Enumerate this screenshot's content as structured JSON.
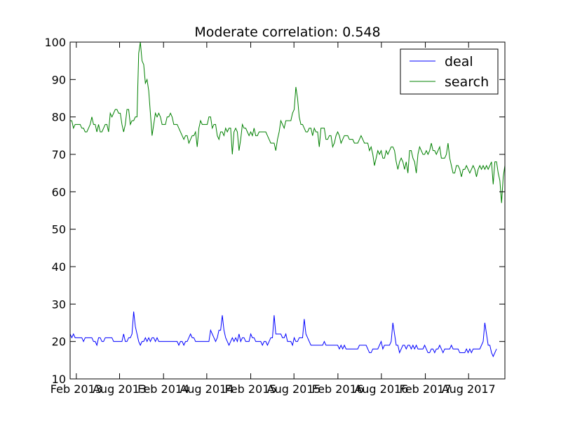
{
  "chart_data": {
    "type": "line",
    "title": "Moderate correlation: 0.548",
    "xlabel": "",
    "ylabel": "",
    "x_start": "2013-01-06",
    "x_end": "2017-12-31",
    "x_step": "week",
    "ylim": [
      10,
      100
    ],
    "yticks": [
      10,
      20,
      30,
      40,
      50,
      60,
      70,
      80,
      90,
      100
    ],
    "xticks": [
      {
        "date": "2013-02-01",
        "label": "Feb 2013"
      },
      {
        "date": "2013-08-01",
        "label": "Aug 2013"
      },
      {
        "date": "2014-02-01",
        "label": "Feb 2014"
      },
      {
        "date": "2014-08-01",
        "label": "Aug 2014"
      },
      {
        "date": "2015-02-01",
        "label": "Feb 2015"
      },
      {
        "date": "2015-08-01",
        "label": "Aug 2015"
      },
      {
        "date": "2016-02-01",
        "label": "Feb 2016"
      },
      {
        "date": "2016-08-01",
        "label": "Aug 2016"
      },
      {
        "date": "2017-02-01",
        "label": "Feb 2017"
      },
      {
        "date": "2017-08-01",
        "label": "Aug 2017"
      }
    ],
    "grid": false,
    "legend_position": "top-right",
    "series": [
      {
        "name": "deal",
        "color": "#0000ff",
        "values": [
          22,
          21,
          22,
          21,
          21,
          21,
          21,
          21,
          20,
          21,
          21,
          21,
          21,
          21,
          20,
          20,
          19,
          21,
          21,
          20,
          20,
          21,
          21,
          21,
          21,
          21,
          20,
          20,
          20,
          20,
          20,
          20,
          22,
          20,
          20,
          21,
          21,
          22,
          28,
          24,
          22,
          20,
          19,
          20,
          20,
          21,
          20,
          21,
          20,
          21,
          21,
          20,
          21,
          20,
          20,
          20,
          20,
          20,
          20,
          20,
          20,
          20,
          20,
          20,
          20,
          19,
          20,
          20,
          19,
          20,
          20,
          21,
          22,
          21,
          21,
          20,
          20,
          20,
          20,
          20,
          20,
          20,
          20,
          20,
          23,
          22,
          21,
          20,
          21,
          23,
          23,
          27,
          23,
          21,
          20,
          19,
          20,
          21,
          20,
          21,
          20,
          22,
          20,
          21,
          21,
          20,
          20,
          20,
          22,
          21,
          21,
          20,
          20,
          20,
          20,
          19,
          20,
          20,
          19,
          20,
          21,
          21,
          27,
          22,
          22,
          22,
          22,
          21,
          21,
          22,
          20,
          20,
          20,
          19,
          21,
          20,
          20,
          21,
          21,
          21,
          26,
          22,
          21,
          20,
          19,
          19,
          19,
          19,
          19,
          19,
          19,
          19,
          20,
          19,
          19,
          19,
          19,
          19,
          19,
          19,
          19,
          18,
          19,
          18,
          19,
          18,
          18,
          18,
          18,
          18,
          18,
          18,
          18,
          19,
          19,
          19,
          19,
          19,
          18,
          17,
          17,
          18,
          18,
          18,
          18,
          19,
          20,
          18,
          19,
          19,
          19,
          19,
          20,
          25,
          22,
          19,
          19,
          17,
          18,
          19,
          19,
          18,
          19,
          19,
          18,
          19,
          18,
          19,
          18,
          18,
          18,
          18,
          19,
          18,
          17,
          17,
          18,
          18,
          17,
          18,
          18,
          19,
          18,
          17,
          18,
          18,
          18,
          18,
          19,
          18,
          18,
          18,
          18,
          17,
          17,
          17,
          17,
          18,
          17,
          18,
          17,
          18,
          18,
          18,
          18,
          18,
          19,
          20,
          25,
          22,
          19,
          19,
          17,
          16,
          17,
          18
        ]
      },
      {
        "name": "search",
        "color": "#008000",
        "values": [
          79,
          79,
          77,
          78,
          78,
          78,
          78,
          77,
          77,
          76,
          76,
          77,
          78,
          80,
          78,
          78,
          76,
          78,
          76,
          76,
          77,
          78,
          78,
          76,
          81,
          80,
          81,
          82,
          82,
          81,
          81,
          78,
          76,
          78,
          82,
          82,
          78,
          79,
          79,
          80,
          80,
          97,
          100,
          95,
          94,
          89,
          90,
          87,
          81,
          75,
          78,
          81,
          80,
          81,
          80,
          78,
          78,
          78,
          80,
          80,
          81,
          80,
          78,
          78,
          78,
          77,
          76,
          75,
          74,
          75,
          75,
          73,
          74,
          75,
          75,
          76,
          72,
          77,
          79,
          78,
          78,
          78,
          78,
          80,
          80,
          77,
          78,
          78,
          75,
          74,
          76,
          76,
          75,
          77,
          76,
          77,
          77,
          70,
          76,
          77,
          76,
          71,
          74,
          78,
          77,
          77,
          76,
          75,
          76,
          75,
          77,
          75,
          75,
          76,
          76,
          76,
          76,
          76,
          75,
          74,
          73,
          73,
          73,
          71,
          74,
          76,
          79,
          78,
          77,
          79,
          79,
          79,
          79,
          81,
          82,
          88,
          85,
          80,
          78,
          78,
          77,
          76,
          76,
          77,
          77,
          75,
          77,
          76,
          76,
          72,
          77,
          77,
          77,
          74,
          74,
          75,
          75,
          72,
          73,
          75,
          76,
          75,
          73,
          74,
          75,
          75,
          75,
          74,
          74,
          74,
          73,
          73,
          73,
          74,
          75,
          74,
          73,
          73,
          73,
          71,
          72,
          70,
          67,
          69,
          71,
          70,
          71,
          69,
          69,
          71,
          70,
          71,
          72,
          72,
          71,
          68,
          66,
          68,
          69,
          68,
          66,
          68,
          65,
          71,
          71,
          69,
          68,
          65,
          70,
          72,
          71,
          70,
          70,
          71,
          70,
          71,
          73,
          71,
          71,
          70,
          71,
          72,
          69,
          69,
          69,
          70,
          73,
          69,
          67,
          65,
          65,
          67,
          67,
          66,
          64,
          66,
          66,
          67,
          66,
          65,
          66,
          67,
          66,
          64,
          66,
          67,
          66,
          67,
          66,
          67,
          66,
          67,
          68,
          62,
          68,
          68,
          65,
          63,
          57,
          64,
          67
        ]
      }
    ]
  }
}
